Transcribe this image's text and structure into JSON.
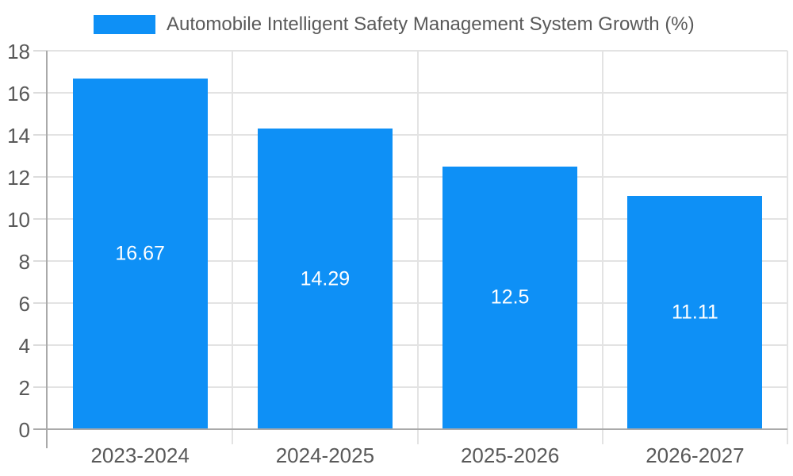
{
  "chart_data": {
    "type": "bar",
    "title": "Automobile Intelligent Safety Management System Growth (%)",
    "categories": [
      "2023-2024",
      "2024-2025",
      "2025-2026",
      "2026-2027"
    ],
    "values": [
      16.67,
      14.29,
      12.5,
      11.11
    ],
    "value_labels": [
      "16.67",
      "14.29",
      "12.5",
      "11.11"
    ],
    "xlabel": "",
    "ylabel": "",
    "ylim": [
      0,
      18
    ],
    "y_ticks": [
      0,
      2,
      4,
      6,
      8,
      10,
      12,
      14,
      16,
      18
    ],
    "grid": true,
    "legend_position": "top",
    "colors": {
      "bar": "#0e90f6",
      "bar_label": "#ffffff",
      "axis_text": "#595959",
      "grid_line": "#e3e3e3",
      "axis_line": "#aaaaaa",
      "tick_line": "#dcdcdc",
      "background": "#ffffff"
    }
  }
}
